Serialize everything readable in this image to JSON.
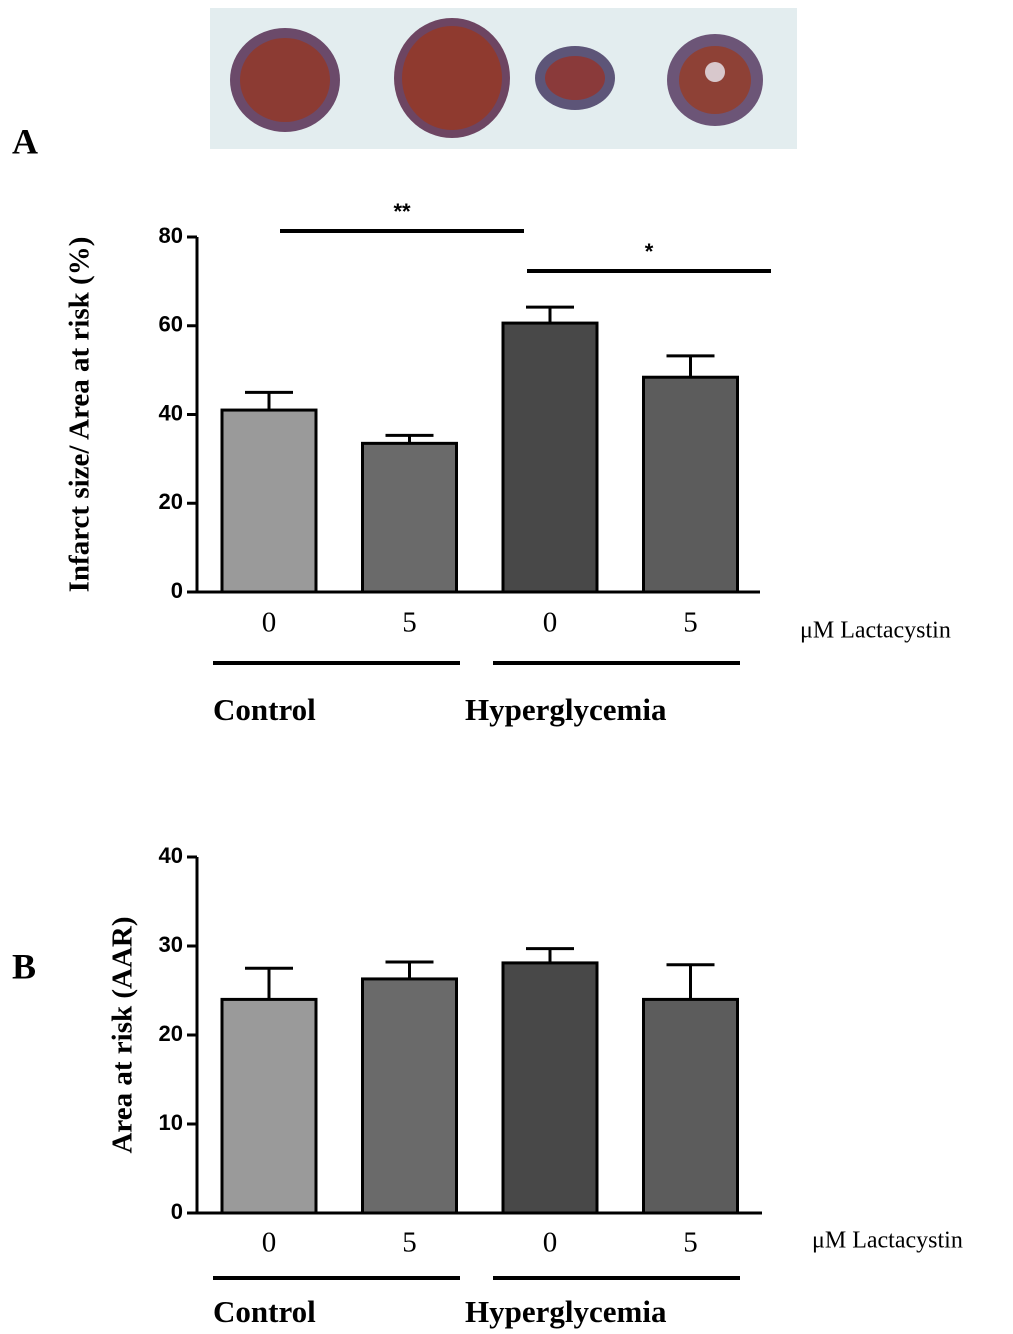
{
  "chart_data": [
    {
      "type": "bar",
      "panel_label": "A",
      "ylabel": "Infarct size/ Area at risk (%)",
      "categories": [
        "0",
        "5",
        "0",
        "5"
      ],
      "values": [
        41,
        33.5,
        60.6,
        48.4
      ],
      "errors": [
        4,
        1.8,
        3.6,
        4.8
      ],
      "colors": [
        "#9a9a9a",
        "#6a6a6a",
        "#484848",
        "#5c5c5c"
      ],
      "ylim": [
        0,
        80
      ],
      "yticks": [
        0,
        20,
        40,
        60,
        80
      ],
      "x_annotation": "μM Lactacystin",
      "groups": [
        "Control",
        "Hyperglycemia"
      ],
      "significance": [
        "**",
        "*"
      ]
    },
    {
      "type": "bar",
      "panel_label": "B",
      "ylabel": "Area at risk (AAR)",
      "categories": [
        "0",
        "5",
        "0",
        "5"
      ],
      "values": [
        24,
        26.3,
        28.1,
        24
      ],
      "errors": [
        3.5,
        1.9,
        1.6,
        3.9
      ],
      "colors": [
        "#9a9a9a",
        "#6a6a6a",
        "#484848",
        "#5c5c5c"
      ],
      "ylim": [
        0,
        40
      ],
      "yticks": [
        0,
        10,
        20,
        30,
        40
      ],
      "x_annotation": "μM Lactacystin",
      "groups": [
        "Control",
        "Hyperglycemia"
      ]
    }
  ]
}
